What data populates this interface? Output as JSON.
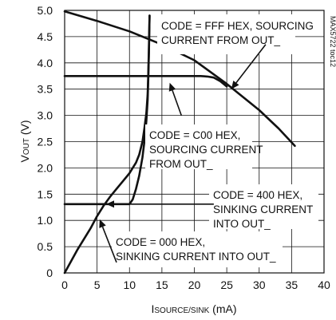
{
  "chart_data": {
    "type": "line",
    "title": "",
    "xlabel": {
      "main": "I",
      "sub": "SOURCE/SINK",
      "unit": " (mA)"
    },
    "ylabel": {
      "main": "V",
      "sub": "OUT",
      "unit": " (V)"
    },
    "xlim": [
      0,
      40
    ],
    "ylim": [
      0,
      5
    ],
    "x_ticks": [
      "0",
      "5",
      "10",
      "15",
      "20",
      "25",
      "30",
      "35",
      "40"
    ],
    "y_ticks": [
      "0",
      "0.5",
      "1.0",
      "1.5",
      "2.0",
      "2.5",
      "3.0",
      "3.5",
      "4.0",
      "4.5",
      "5.0"
    ],
    "grid": true,
    "plot_id": "MAX5722 toc12",
    "series": [
      {
        "x": [
          0,
          5,
          10,
          15,
          20,
          25,
          30,
          33,
          35.5
        ],
        "y": [
          4.98,
          4.8,
          4.6,
          4.35,
          4.05,
          3.6,
          3.1,
          2.75,
          2.42
        ]
      },
      {
        "x": [
          0,
          21,
          22,
          23,
          24,
          25
        ],
        "y": [
          3.75,
          3.75,
          3.74,
          3.72,
          3.65,
          3.55
        ]
      },
      {
        "x": [
          0,
          2,
          4,
          5,
          6,
          7,
          8,
          9,
          10,
          10.5,
          11,
          11.5,
          12,
          12.3,
          12.6,
          12.8,
          12.9,
          13,
          13.1
        ],
        "y": [
          1.31,
          1.31,
          1.31,
          1.31,
          1.31,
          1.31,
          1.31,
          1.31,
          1.31,
          1.4,
          1.6,
          1.85,
          2.2,
          2.5,
          2.9,
          3.3,
          3.7,
          4.2,
          4.9
        ]
      },
      {
        "x": [
          0,
          2,
          4,
          5,
          6,
          7,
          8,
          9,
          10,
          10.5,
          11,
          11.5,
          12,
          12.3,
          12.6,
          12.8,
          12.9,
          13,
          13.1
        ],
        "y": [
          0,
          0.45,
          0.85,
          1.08,
          1.28,
          1.45,
          1.6,
          1.75,
          1.9,
          2.0,
          2.1,
          2.25,
          2.5,
          2.75,
          3.05,
          3.4,
          3.8,
          4.3,
          4.9
        ]
      }
    ],
    "annotations": [
      {
        "lines": [
          "CODE = FFF HEX, SOURCING",
          "CURRENT FROM OUT_"
        ]
      },
      {
        "lines": [
          "CODE = C00 HEX,",
          "SOURCING CURRENT",
          "FROM OUT_"
        ]
      },
      {
        "lines": [
          "CODE = 400 HEX,",
          "SINKING CURRENT",
          "INTO OUT_"
        ]
      },
      {
        "lines": [
          "CODE = 000 HEX,",
          "SINKING CURRENT INTO OUT_"
        ]
      }
    ]
  }
}
